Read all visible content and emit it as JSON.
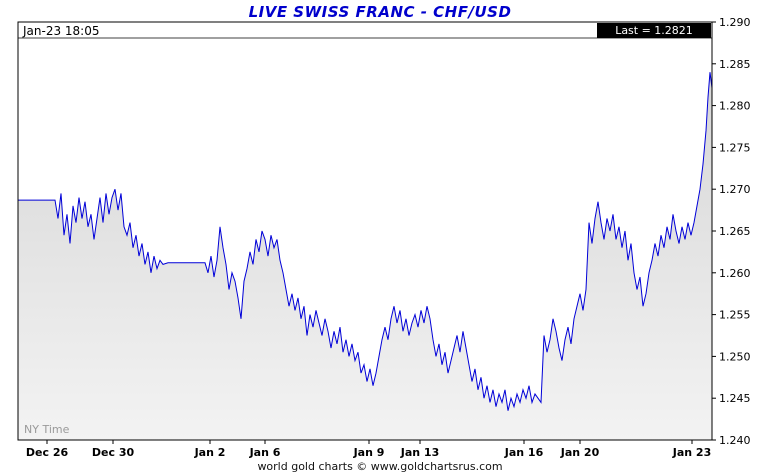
{
  "title": "LIVE SWISS FRANC - CHF/USD",
  "header": {
    "timestamp": "Jan-23 18:05",
    "last_label": "Last = 1.2821"
  },
  "watermark": "NY Time",
  "footer": "world gold charts © www.goldchartsrus.com",
  "colors": {
    "title": "#0000cc",
    "line": "#0000d8",
    "fill_top": "#d6d6d6",
    "fill_bottom": "#f3f3f3",
    "badge_bg": "#000000",
    "badge_text": "#ffffff"
  },
  "chart_data": {
    "type": "area",
    "title": "LIVE SWISS FRANC - CHF/USD",
    "xlabel": "",
    "ylabel": "",
    "ylim": [
      1.24,
      1.29
    ],
    "y_ticks": [
      1.24,
      1.245,
      1.25,
      1.255,
      1.26,
      1.265,
      1.27,
      1.275,
      1.28,
      1.285,
      1.29
    ],
    "x_ticks": [
      {
        "pos": 29,
        "label": "Dec 26"
      },
      {
        "pos": 95,
        "label": "Dec 30"
      },
      {
        "pos": 192,
        "label": "Jan 2"
      },
      {
        "pos": 247,
        "label": "Jan 6"
      },
      {
        "pos": 351,
        "label": "Jan 9"
      },
      {
        "pos": 402,
        "label": "Jan 13"
      },
      {
        "pos": 506,
        "label": "Jan 16"
      },
      {
        "pos": 562,
        "label": "Jan 20"
      },
      {
        "pos": 674,
        "label": "Jan 23"
      }
    ],
    "x_range": [
      0,
      694
    ],
    "last": 1.2821,
    "grid": false,
    "legend": false,
    "points": [
      [
        0,
        1.2687
      ],
      [
        37,
        1.2687
      ],
      [
        40,
        1.2665
      ],
      [
        43,
        1.2695
      ],
      [
        46,
        1.2645
      ],
      [
        49,
        1.267
      ],
      [
        52,
        1.2635
      ],
      [
        55,
        1.268
      ],
      [
        58,
        1.266
      ],
      [
        61,
        1.269
      ],
      [
        64,
        1.2665
      ],
      [
        67,
        1.2685
      ],
      [
        70,
        1.2655
      ],
      [
        73,
        1.267
      ],
      [
        76,
        1.264
      ],
      [
        79,
        1.2665
      ],
      [
        82,
        1.269
      ],
      [
        85,
        1.266
      ],
      [
        88,
        1.2695
      ],
      [
        91,
        1.267
      ],
      [
        94,
        1.269
      ],
      [
        97,
        1.27
      ],
      [
        100,
        1.2675
      ],
      [
        103,
        1.2695
      ],
      [
        106,
        1.2655
      ],
      [
        109,
        1.2645
      ],
      [
        112,
        1.266
      ],
      [
        115,
        1.263
      ],
      [
        118,
        1.2645
      ],
      [
        121,
        1.262
      ],
      [
        124,
        1.2635
      ],
      [
        127,
        1.261
      ],
      [
        130,
        1.2625
      ],
      [
        133,
        1.26
      ],
      [
        136,
        1.262
      ],
      [
        139,
        1.2605
      ],
      [
        142,
        1.2615
      ],
      [
        145,
        1.261
      ],
      [
        150,
        1.2612
      ],
      [
        187,
        1.2612
      ],
      [
        190,
        1.26
      ],
      [
        193,
        1.262
      ],
      [
        196,
        1.2595
      ],
      [
        199,
        1.2615
      ],
      [
        202,
        1.2655
      ],
      [
        205,
        1.263
      ],
      [
        208,
        1.261
      ],
      [
        211,
        1.258
      ],
      [
        214,
        1.26
      ],
      [
        217,
        1.259
      ],
      [
        220,
        1.257
      ],
      [
        223,
        1.2545
      ],
      [
        226,
        1.259
      ],
      [
        229,
        1.2605
      ],
      [
        232,
        1.2625
      ],
      [
        235,
        1.261
      ],
      [
        238,
        1.264
      ],
      [
        241,
        1.2625
      ],
      [
        244,
        1.265
      ],
      [
        247,
        1.264
      ],
      [
        250,
        1.262
      ],
      [
        253,
        1.2645
      ],
      [
        256,
        1.263
      ],
      [
        259,
        1.264
      ],
      [
        262,
        1.2615
      ],
      [
        265,
        1.26
      ],
      [
        268,
        1.258
      ],
      [
        271,
        1.256
      ],
      [
        274,
        1.2575
      ],
      [
        277,
        1.2555
      ],
      [
        280,
        1.257
      ],
      [
        283,
        1.2545
      ],
      [
        286,
        1.256
      ],
      [
        289,
        1.2525
      ],
      [
        292,
        1.255
      ],
      [
        295,
        1.2535
      ],
      [
        298,
        1.2555
      ],
      [
        301,
        1.254
      ],
      [
        304,
        1.2525
      ],
      [
        307,
        1.2545
      ],
      [
        310,
        1.253
      ],
      [
        313,
        1.251
      ],
      [
        316,
        1.253
      ],
      [
        319,
        1.2515
      ],
      [
        322,
        1.2535
      ],
      [
        325,
        1.2505
      ],
      [
        328,
        1.252
      ],
      [
        331,
        1.25
      ],
      [
        334,
        1.2515
      ],
      [
        337,
        1.2495
      ],
      [
        340,
        1.2505
      ],
      [
        343,
        1.248
      ],
      [
        346,
        1.249
      ],
      [
        349,
        1.247
      ],
      [
        352,
        1.2485
      ],
      [
        355,
        1.2465
      ],
      [
        358,
        1.248
      ],
      [
        361,
        1.25
      ],
      [
        364,
        1.252
      ],
      [
        367,
        1.2535
      ],
      [
        370,
        1.252
      ],
      [
        373,
        1.2545
      ],
      [
        376,
        1.256
      ],
      [
        379,
        1.254
      ],
      [
        382,
        1.2555
      ],
      [
        385,
        1.253
      ],
      [
        388,
        1.2545
      ],
      [
        391,
        1.2525
      ],
      [
        394,
        1.254
      ],
      [
        397,
        1.255
      ],
      [
        400,
        1.2535
      ],
      [
        403,
        1.2555
      ],
      [
        406,
        1.254
      ],
      [
        409,
        1.256
      ],
      [
        412,
        1.2545
      ],
      [
        415,
        1.252
      ],
      [
        418,
        1.25
      ],
      [
        421,
        1.2515
      ],
      [
        424,
        1.249
      ],
      [
        427,
        1.2505
      ],
      [
        430,
        1.248
      ],
      [
        433,
        1.2495
      ],
      [
        436,
        1.251
      ],
      [
        439,
        1.2525
      ],
      [
        442,
        1.2505
      ],
      [
        445,
        1.253
      ],
      [
        448,
        1.251
      ],
      [
        451,
        1.249
      ],
      [
        454,
        1.247
      ],
      [
        457,
        1.2485
      ],
      [
        460,
        1.246
      ],
      [
        463,
        1.2475
      ],
      [
        466,
        1.245
      ],
      [
        469,
        1.2465
      ],
      [
        472,
        1.2445
      ],
      [
        475,
        1.246
      ],
      [
        478,
        1.244
      ],
      [
        481,
        1.2455
      ],
      [
        484,
        1.2445
      ],
      [
        487,
        1.246
      ],
      [
        490,
        1.2435
      ],
      [
        493,
        1.245
      ],
      [
        496,
        1.244
      ],
      [
        499,
        1.2455
      ],
      [
        502,
        1.2445
      ],
      [
        505,
        1.246
      ],
      [
        508,
        1.245
      ],
      [
        511,
        1.2465
      ],
      [
        514,
        1.2445
      ],
      [
        517,
        1.2455
      ],
      [
        520,
        1.245
      ],
      [
        523,
        1.2445
      ],
      [
        526,
        1.2525
      ],
      [
        529,
        1.2505
      ],
      [
        532,
        1.252
      ],
      [
        535,
        1.2545
      ],
      [
        538,
        1.253
      ],
      [
        541,
        1.251
      ],
      [
        544,
        1.2495
      ],
      [
        547,
        1.252
      ],
      [
        550,
        1.2535
      ],
      [
        553,
        1.2515
      ],
      [
        556,
        1.2545
      ],
      [
        559,
        1.256
      ],
      [
        562,
        1.2575
      ],
      [
        565,
        1.2555
      ],
      [
        568,
        1.258
      ],
      [
        571,
        1.266
      ],
      [
        574,
        1.2635
      ],
      [
        577,
        1.2665
      ],
      [
        580,
        1.2685
      ],
      [
        583,
        1.266
      ],
      [
        586,
        1.264
      ],
      [
        589,
        1.2665
      ],
      [
        592,
        1.265
      ],
      [
        595,
        1.267
      ],
      [
        598,
        1.264
      ],
      [
        601,
        1.2655
      ],
      [
        604,
        1.263
      ],
      [
        607,
        1.265
      ],
      [
        610,
        1.2615
      ],
      [
        613,
        1.2635
      ],
      [
        616,
        1.26
      ],
      [
        619,
        1.258
      ],
      [
        622,
        1.2595
      ],
      [
        625,
        1.256
      ],
      [
        628,
        1.2575
      ],
      [
        631,
        1.26
      ],
      [
        634,
        1.2615
      ],
      [
        637,
        1.2635
      ],
      [
        640,
        1.262
      ],
      [
        643,
        1.2645
      ],
      [
        646,
        1.263
      ],
      [
        649,
        1.2655
      ],
      [
        652,
        1.264
      ],
      [
        655,
        1.267
      ],
      [
        658,
        1.265
      ],
      [
        661,
        1.2635
      ],
      [
        664,
        1.2655
      ],
      [
        667,
        1.264
      ],
      [
        670,
        1.266
      ],
      [
        673,
        1.2645
      ],
      [
        676,
        1.266
      ],
      [
        679,
        1.268
      ],
      [
        682,
        1.27
      ],
      [
        685,
        1.273
      ],
      [
        688,
        1.277
      ],
      [
        690,
        1.281
      ],
      [
        692,
        1.284
      ],
      [
        694,
        1.2821
      ]
    ]
  }
}
